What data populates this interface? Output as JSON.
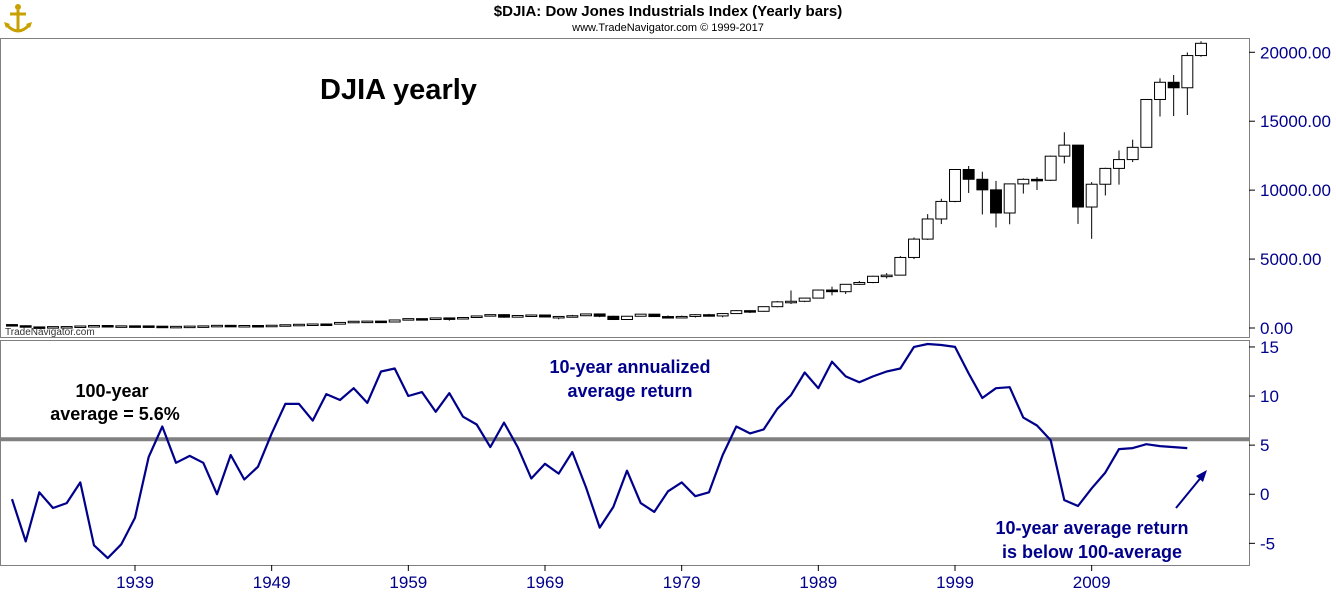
{
  "header": {
    "title": "$DJIA:  Dow Jones Industrials Index  (Yearly bars)",
    "copyright": "www.TradeNavigator.com © 1999-2017"
  },
  "watermark": "TradeNavigator.com",
  "colors": {
    "line": "#00008b",
    "average_line": "#808080",
    "axis_text": "#00008b",
    "up_candle": "#ffffff",
    "down_candle": "#000000"
  },
  "annotations": {
    "top_title": "DJIA yearly",
    "avg_label_1": "100-year",
    "avg_label_2": "average = 5.6%",
    "series_label_1": "10-year annualized",
    "series_label_2": "average return",
    "note_1": "10-year average return",
    "note_2": "is below 100-average"
  },
  "chart_data": [
    {
      "type": "candlestick",
      "title": "DJIA yearly",
      "y_range": [
        0,
        20600
      ],
      "y_ticks": [
        "0.00",
        "5000.00",
        "10000.00",
        "15000.00",
        "20000.00"
      ],
      "candles_note": "open, high, low, close in index points",
      "candles": [
        {
          "year": 1930,
          "o": 248,
          "h": 294,
          "l": 157,
          "c": 165
        },
        {
          "year": 1931,
          "o": 165,
          "h": 195,
          "l": 74,
          "c": 78
        },
        {
          "year": 1932,
          "o": 78,
          "h": 88,
          "l": 41,
          "c": 60
        },
        {
          "year": 1933,
          "o": 60,
          "h": 108,
          "l": 50,
          "c": 100
        },
        {
          "year": 1934,
          "o": 100,
          "h": 111,
          "l": 86,
          "c": 104
        },
        {
          "year": 1935,
          "o": 104,
          "h": 148,
          "l": 96,
          "c": 144
        },
        {
          "year": 1936,
          "o": 144,
          "h": 184,
          "l": 143,
          "c": 180
        },
        {
          "year": 1937,
          "o": 180,
          "h": 194,
          "l": 113,
          "c": 121
        },
        {
          "year": 1938,
          "o": 121,
          "h": 158,
          "l": 99,
          "c": 155
        },
        {
          "year": 1939,
          "o": 155,
          "h": 156,
          "l": 121,
          "c": 150
        },
        {
          "year": 1940,
          "o": 150,
          "h": 153,
          "l": 111,
          "c": 131
        },
        {
          "year": 1941,
          "o": 131,
          "h": 134,
          "l": 106,
          "c": 111
        },
        {
          "year": 1942,
          "o": 111,
          "h": 119,
          "l": 93,
          "c": 119
        },
        {
          "year": 1943,
          "o": 119,
          "h": 146,
          "l": 119,
          "c": 136
        },
        {
          "year": 1944,
          "o": 136,
          "h": 153,
          "l": 135,
          "c": 152
        },
        {
          "year": 1945,
          "o": 152,
          "h": 196,
          "l": 151,
          "c": 193
        },
        {
          "year": 1946,
          "o": 193,
          "h": 212,
          "l": 163,
          "c": 177
        },
        {
          "year": 1947,
          "o": 177,
          "h": 187,
          "l": 163,
          "c": 181
        },
        {
          "year": 1948,
          "o": 181,
          "h": 193,
          "l": 165,
          "c": 177
        },
        {
          "year": 1949,
          "o": 177,
          "h": 201,
          "l": 161,
          "c": 200
        },
        {
          "year": 1950,
          "o": 200,
          "h": 235,
          "l": 197,
          "c": 235
        },
        {
          "year": 1951,
          "o": 235,
          "h": 276,
          "l": 238,
          "c": 269
        },
        {
          "year": 1952,
          "o": 269,
          "h": 292,
          "l": 256,
          "c": 291
        },
        {
          "year": 1953,
          "o": 291,
          "h": 293,
          "l": 255,
          "c": 280
        },
        {
          "year": 1954,
          "o": 280,
          "h": 404,
          "l": 279,
          "c": 404
        },
        {
          "year": 1955,
          "o": 404,
          "h": 488,
          "l": 388,
          "c": 488
        },
        {
          "year": 1956,
          "o": 488,
          "h": 521,
          "l": 462,
          "c": 499
        },
        {
          "year": 1957,
          "o": 499,
          "h": 520,
          "l": 419,
          "c": 435
        },
        {
          "year": 1958,
          "o": 435,
          "h": 583,
          "l": 436,
          "c": 583
        },
        {
          "year": 1959,
          "o": 583,
          "h": 679,
          "l": 574,
          "c": 679
        },
        {
          "year": 1960,
          "o": 679,
          "h": 685,
          "l": 566,
          "c": 615
        },
        {
          "year": 1961,
          "o": 615,
          "h": 734,
          "l": 610,
          "c": 731
        },
        {
          "year": 1962,
          "o": 731,
          "h": 726,
          "l": 535,
          "c": 652
        },
        {
          "year": 1963,
          "o": 652,
          "h": 767,
          "l": 646,
          "c": 762
        },
        {
          "year": 1964,
          "o": 762,
          "h": 891,
          "l": 766,
          "c": 874
        },
        {
          "year": 1965,
          "o": 874,
          "h": 969,
          "l": 840,
          "c": 969
        },
        {
          "year": 1966,
          "o": 969,
          "h": 995,
          "l": 744,
          "c": 785
        },
        {
          "year": 1967,
          "o": 785,
          "h": 943,
          "l": 786,
          "c": 905
        },
        {
          "year": 1968,
          "o": 905,
          "h": 985,
          "l": 825,
          "c": 943
        },
        {
          "year": 1969,
          "o": 943,
          "h": 968,
          "l": 769,
          "c": 800
        },
        {
          "year": 1970,
          "o": 800,
          "h": 842,
          "l": 631,
          "c": 838
        },
        {
          "year": 1971,
          "o": 838,
          "h": 950,
          "l": 797,
          "c": 890
        },
        {
          "year": 1972,
          "o": 890,
          "h": 1036,
          "l": 889,
          "c": 1020
        },
        {
          "year": 1973,
          "o": 1020,
          "h": 1052,
          "l": 788,
          "c": 851
        },
        {
          "year": 1974,
          "o": 851,
          "h": 891,
          "l": 577,
          "c": 616
        },
        {
          "year": 1975,
          "o": 616,
          "h": 881,
          "l": 632,
          "c": 852
        },
        {
          "year": 1976,
          "o": 852,
          "h": 1014,
          "l": 858,
          "c": 1004
        },
        {
          "year": 1977,
          "o": 1004,
          "h": 999,
          "l": 800,
          "c": 831
        },
        {
          "year": 1978,
          "o": 831,
          "h": 907,
          "l": 742,
          "c": 805
        },
        {
          "year": 1979,
          "o": 805,
          "h": 897,
          "l": 796,
          "c": 838
        },
        {
          "year": 1980,
          "o": 838,
          "h": 1000,
          "l": 759,
          "c": 964
        },
        {
          "year": 1981,
          "o": 964,
          "h": 1024,
          "l": 824,
          "c": 875
        },
        {
          "year": 1982,
          "o": 875,
          "h": 1070,
          "l": 777,
          "c": 1046
        },
        {
          "year": 1983,
          "o": 1046,
          "h": 1287,
          "l": 1027,
          "c": 1258
        },
        {
          "year": 1984,
          "o": 1258,
          "h": 1287,
          "l": 1086,
          "c": 1212
        },
        {
          "year": 1985,
          "o": 1212,
          "h": 1553,
          "l": 1184,
          "c": 1547
        },
        {
          "year": 1986,
          "o": 1547,
          "h": 1955,
          "l": 1502,
          "c": 1896
        },
        {
          "year": 1987,
          "o": 1896,
          "h": 2722,
          "l": 1738,
          "c": 1939
        },
        {
          "year": 1988,
          "o": 1939,
          "h": 2183,
          "l": 1879,
          "c": 2169
        },
        {
          "year": 1989,
          "o": 2169,
          "h": 2791,
          "l": 2144,
          "c": 2753
        },
        {
          "year": 1990,
          "o": 2753,
          "h": 2999,
          "l": 2365,
          "c": 2634
        },
        {
          "year": 1991,
          "o": 2634,
          "h": 3168,
          "l": 2470,
          "c": 3169
        },
        {
          "year": 1992,
          "o": 3169,
          "h": 3413,
          "l": 3136,
          "c": 3301
        },
        {
          "year": 1993,
          "o": 3301,
          "h": 3794,
          "l": 3242,
          "c": 3754
        },
        {
          "year": 1994,
          "o": 3754,
          "h": 3978,
          "l": 3593,
          "c": 3834
        },
        {
          "year": 1995,
          "o": 3834,
          "h": 5216,
          "l": 3832,
          "c": 5117
        },
        {
          "year": 1996,
          "o": 5117,
          "h": 6560,
          "l": 5000,
          "c": 6448
        },
        {
          "year": 1997,
          "o": 6448,
          "h": 8259,
          "l": 6391,
          "c": 7908
        },
        {
          "year": 1998,
          "o": 7908,
          "h": 9374,
          "l": 7539,
          "c": 9181
        },
        {
          "year": 1999,
          "o": 9181,
          "h": 11497,
          "l": 9120,
          "c": 11497
        },
        {
          "year": 2000,
          "o": 11497,
          "h": 11750,
          "l": 9796,
          "c": 10787
        },
        {
          "year": 2001,
          "o": 10787,
          "h": 11337,
          "l": 8236,
          "c": 10021
        },
        {
          "year": 2002,
          "o": 10021,
          "h": 10673,
          "l": 7286,
          "c": 8342
        },
        {
          "year": 2003,
          "o": 8342,
          "h": 10454,
          "l": 7524,
          "c": 10453
        },
        {
          "year": 2004,
          "o": 10453,
          "h": 10854,
          "l": 9750,
          "c": 10783
        },
        {
          "year": 2005,
          "o": 10783,
          "h": 10940,
          "l": 10012,
          "c": 10717
        },
        {
          "year": 2006,
          "o": 10717,
          "h": 12510,
          "l": 10668,
          "c": 12463
        },
        {
          "year": 2007,
          "o": 12463,
          "h": 14198,
          "l": 11940,
          "c": 13264
        },
        {
          "year": 2008,
          "o": 13264,
          "h": 13279,
          "l": 7552,
          "c": 8776
        },
        {
          "year": 2009,
          "o": 8776,
          "h": 10580,
          "l": 6469,
          "c": 10428
        },
        {
          "year": 2010,
          "o": 10428,
          "h": 11625,
          "l": 9614,
          "c": 11577
        },
        {
          "year": 2011,
          "o": 11577,
          "h": 12876,
          "l": 10404,
          "c": 12217
        },
        {
          "year": 2012,
          "o": 12217,
          "h": 13661,
          "l": 12035,
          "c": 13104
        },
        {
          "year": 2013,
          "o": 13104,
          "h": 16588,
          "l": 13104,
          "c": 16576
        },
        {
          "year": 2014,
          "o": 16576,
          "h": 18103,
          "l": 15340,
          "c": 17823
        },
        {
          "year": 2015,
          "o": 17823,
          "h": 18351,
          "l": 15370,
          "c": 17425
        },
        {
          "year": 2016,
          "o": 17425,
          "h": 19987,
          "l": 15450,
          "c": 19762
        },
        {
          "year": 2017,
          "o": 19762,
          "h": 20800,
          "l": 19677,
          "c": 20650
        }
      ]
    },
    {
      "type": "line",
      "title": "10-year annualized average return",
      "y_range": [
        -6.8,
        15.3
      ],
      "y_ticks": [
        "-5",
        "0",
        "5",
        "10",
        "15"
      ],
      "x_range": [
        1930,
        2020
      ],
      "x_ticks": [
        "1939",
        "1949",
        "1959",
        "1969",
        "1979",
        "1989",
        "1999",
        "2009"
      ],
      "average_value": 5.6,
      "x": [
        1929,
        1930,
        1931,
        1932,
        1933,
        1934,
        1935,
        1936,
        1937,
        1938,
        1939,
        1940,
        1941,
        1942,
        1943,
        1944,
        1945,
        1946,
        1947,
        1948,
        1949,
        1950,
        1951,
        1952,
        1953,
        1954,
        1955,
        1956,
        1957,
        1958,
        1959,
        1960,
        1961,
        1962,
        1963,
        1964,
        1965,
        1966,
        1967,
        1968,
        1969,
        1970,
        1971,
        1972,
        1973,
        1974,
        1975,
        1976,
        1977,
        1978,
        1979,
        1980,
        1981,
        1982,
        1983,
        1984,
        1985,
        1986,
        1987,
        1988,
        1989,
        1990,
        1991,
        1992,
        1993,
        1994,
        1995,
        1996,
        1997,
        1998,
        1999,
        2000,
        2001,
        2002,
        2003,
        2004,
        2005,
        2006,
        2007,
        2008,
        2009,
        2010,
        2011,
        2012,
        2013,
        2014,
        2015,
        2016,
        2017,
        2018
      ],
      "values": [
        -0.5,
        -4.8,
        0.2,
        -1.4,
        -0.9,
        1.2,
        -5.2,
        -6.5,
        -5.1,
        -2.4,
        3.8,
        6.9,
        3.2,
        3.9,
        3.2,
        0.0,
        4.0,
        1.5,
        2.8,
        6.2,
        9.2,
        9.2,
        7.5,
        10.2,
        9.6,
        10.8,
        9.3,
        12.5,
        12.8,
        10.0,
        10.4,
        8.4,
        10.3,
        7.9,
        7.1,
        4.8,
        7.3,
        4.8,
        1.6,
        3.1,
        2.1,
        4.3,
        0.7,
        -3.4,
        -1.3,
        2.4,
        -0.9,
        -1.8,
        0.3,
        1.2,
        -0.2,
        0.2,
        4.0,
        6.9,
        6.2,
        6.6,
        8.7,
        10.1,
        12.4,
        10.8,
        13.5,
        12.0,
        11.4,
        12.0,
        12.5,
        12.8,
        15.0,
        15.3,
        15.2,
        15.0,
        12.3,
        9.8,
        10.8,
        10.9,
        7.8,
        7.0,
        5.5,
        -0.6,
        -1.2,
        0.6,
        2.2,
        4.6,
        4.7,
        5.1,
        4.9,
        4.8,
        4.7,
        null,
        null,
        null
      ]
    }
  ]
}
